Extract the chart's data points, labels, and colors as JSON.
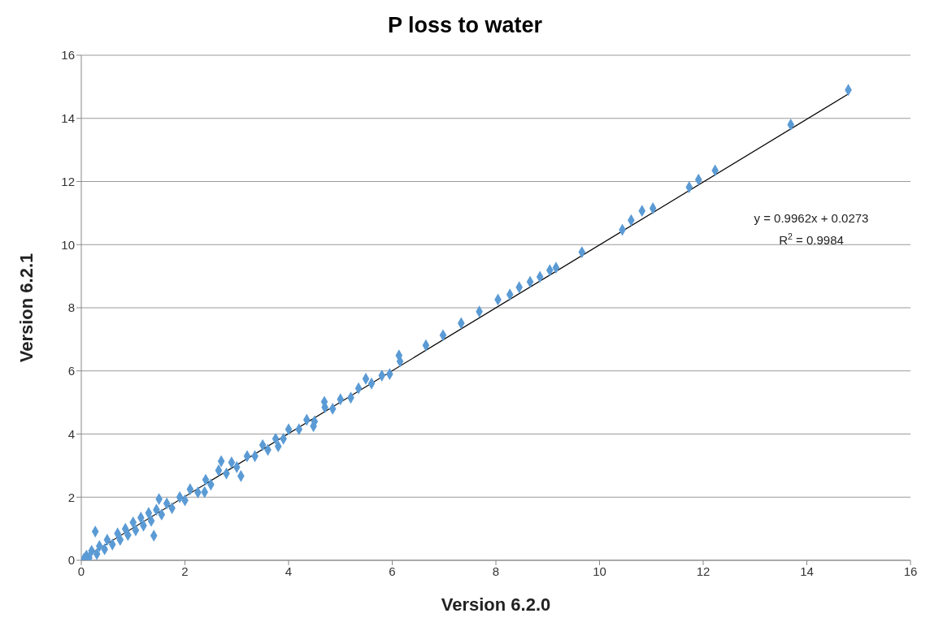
{
  "chart_data": {
    "type": "scatter",
    "title": "P loss to water",
    "xlabel": "Version 6.2.0",
    "ylabel": "Version 6.2.1",
    "xlim": [
      0,
      16
    ],
    "xticks": [
      0,
      2,
      4,
      6,
      8,
      10,
      12,
      14,
      16
    ],
    "ylim": [
      0,
      16
    ],
    "yticks": [
      0,
      2,
      4,
      6,
      8,
      10,
      12,
      14,
      16
    ],
    "grid": "y",
    "annotations": [
      "y = 0.9962x + 0.0273",
      "R$^{2}$ = 0.9984"
    ],
    "series": [
      {
        "type": "scatter",
        "marker": "diamond",
        "color": "#5b9bd5",
        "x": [
          0.05,
          0.1,
          0.15,
          0.2,
          0.27,
          0.3,
          0.35,
          0.45,
          0.5,
          0.6,
          0.7,
          0.75,
          0.85,
          0.9,
          1.0,
          1.05,
          1.15,
          1.2,
          1.3,
          1.35,
          1.4,
          1.45,
          1.5,
          1.55,
          1.65,
          1.75,
          1.9,
          2.0,
          2.1,
          2.25,
          2.38,
          2.4,
          2.5,
          2.65,
          2.7,
          2.8,
          2.9,
          3.0,
          3.08,
          3.2,
          3.35,
          3.5,
          3.6,
          3.75,
          3.8,
          3.9,
          4.0,
          4.2,
          4.35,
          4.48,
          4.5,
          4.69,
          4.7,
          4.85,
          5.0,
          5.2,
          5.35,
          5.49,
          5.6,
          5.8,
          5.95,
          6.13,
          6.15,
          6.65,
          6.98,
          7.33,
          7.68,
          8.04,
          8.27,
          8.45,
          8.66,
          8.85,
          9.04,
          9.16,
          9.66,
          10.44,
          10.61,
          10.82,
          11.03,
          11.73,
          11.91,
          12.23,
          13.69,
          14.8
        ],
        "values": [
          0.05,
          0.15,
          0.08,
          0.3,
          0.91,
          0.2,
          0.45,
          0.35,
          0.65,
          0.5,
          0.85,
          0.65,
          1.0,
          0.8,
          1.2,
          0.95,
          1.35,
          1.1,
          1.5,
          1.25,
          0.78,
          1.6,
          1.94,
          1.45,
          1.8,
          1.65,
          2.0,
          1.9,
          2.25,
          2.15,
          2.16,
          2.55,
          2.4,
          2.85,
          3.14,
          2.75,
          3.1,
          2.95,
          2.67,
          3.3,
          3.3,
          3.65,
          3.5,
          3.85,
          3.61,
          3.85,
          4.15,
          4.15,
          4.45,
          4.25,
          4.4,
          5.02,
          4.85,
          4.8,
          5.1,
          5.15,
          5.45,
          5.75,
          5.6,
          5.85,
          5.9,
          6.49,
          6.3,
          6.81,
          7.13,
          7.51,
          7.88,
          8.26,
          8.42,
          8.65,
          8.82,
          8.98,
          9.19,
          9.27,
          9.76,
          10.47,
          10.77,
          11.07,
          11.15,
          11.82,
          12.06,
          12.35,
          13.8,
          14.9
        ]
      },
      {
        "type": "line",
        "marker": "none",
        "color": "#000000",
        "x": [
          0,
          14.8
        ],
        "values": [
          0.03,
          14.77
        ]
      }
    ]
  }
}
